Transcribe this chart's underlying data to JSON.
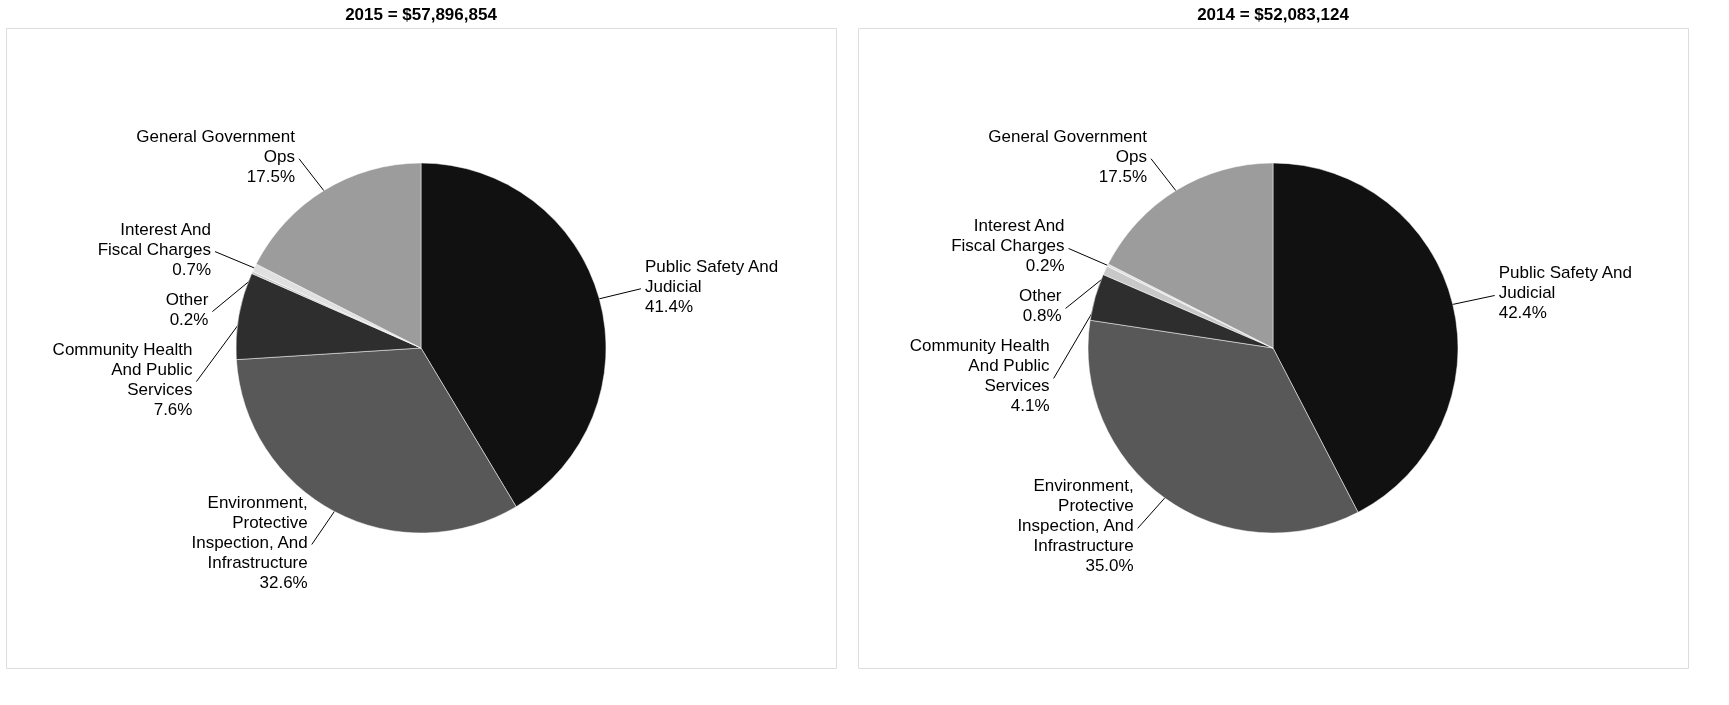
{
  "chart_data": [
    {
      "type": "pie",
      "title": "2015 = $57,896,854",
      "categories": [
        "Public Safety And Judicial",
        "Environment, Protective Inspection, And Infrastructure",
        "Community Health And Public Services",
        "Other",
        "Interest And Fiscal Charges",
        "General Government Ops"
      ],
      "values": [
        41.4,
        32.6,
        7.6,
        0.2,
        0.7,
        17.5
      ],
      "value_labels": [
        "41.4%",
        "32.6%",
        "7.6%",
        "0.2%",
        "0.7%",
        "17.5%"
      ],
      "colors": [
        "#111111",
        "#585858",
        "#2e2e2e",
        "#c8c8c8",
        "#e0e0e0",
        "#9c9c9c"
      ],
      "legend": false
    },
    {
      "type": "pie",
      "title": "2014 = $52,083,124",
      "categories": [
        "Public Safety And Judicial",
        "Environment, Protective Inspection, And Infrastructure",
        "Community Health And Public Services",
        "Other",
        "Interest And Fiscal Charges",
        "General Government Ops"
      ],
      "values": [
        42.4,
        35.0,
        4.1,
        0.8,
        0.2,
        17.5
      ],
      "value_labels": [
        "42.4%",
        "35.0%",
        "4.1%",
        "0.8%",
        "0.2%",
        "17.5%"
      ],
      "colors": [
        "#111111",
        "#585858",
        "#2e2e2e",
        "#c8c8c8",
        "#e0e0e0",
        "#9c9c9c"
      ],
      "legend": false
    }
  ]
}
